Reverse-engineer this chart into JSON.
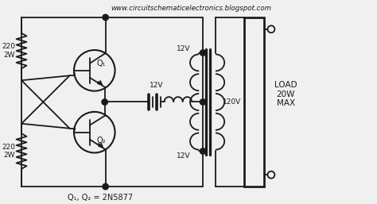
{
  "title": "www.circuitschematicelectronics.blogspot.com",
  "subtitle": "Q₁, Q₂ = 2N5877",
  "background_color": "#f0f0f0",
  "line_color": "#1a1a1a",
  "text_color": "#1a1a1a",
  "fig_width": 4.74,
  "fig_height": 2.57,
  "dpi": 100,
  "R1": "220\n2W",
  "R2": "220\n2W",
  "Q1": "Q₁",
  "Q2": "Q₂",
  "V12_mid": "12V",
  "V12_top": "12V",
  "V12_bot": "12V",
  "V120": "120V",
  "LOAD": "LOAD\n20W\nMAX",
  "xlim": [
    0,
    9.5
  ],
  "ylim": [
    0,
    5.1
  ]
}
